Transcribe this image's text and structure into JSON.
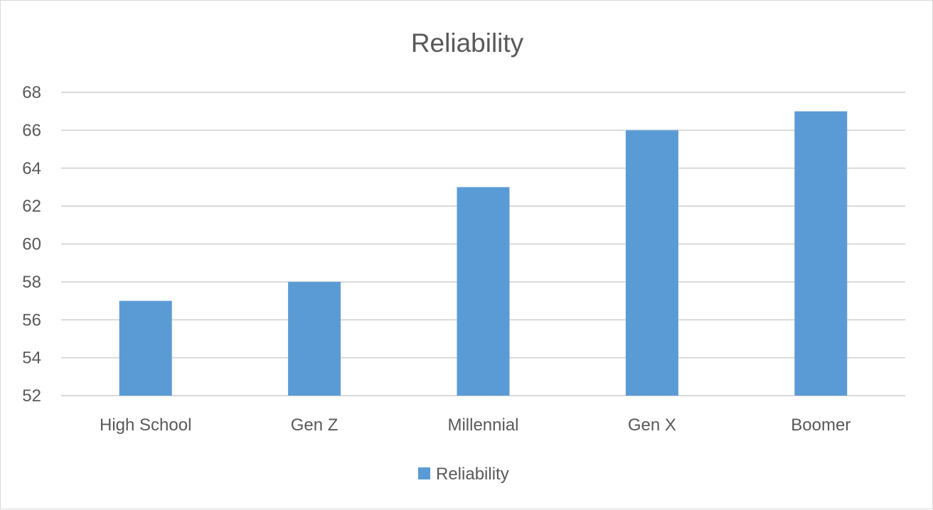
{
  "chart_data": {
    "type": "bar",
    "title": "Reliability",
    "xlabel": "",
    "ylabel": "",
    "categories": [
      "High School",
      "Gen Z",
      "Millennial",
      "Gen X",
      "Boomer"
    ],
    "series": [
      {
        "name": "Reliability",
        "values": [
          57,
          58,
          63,
          66,
          67
        ],
        "color": "#5b9bd5"
      }
    ],
    "ylim": [
      52,
      68
    ],
    "yticks": [
      52,
      54,
      56,
      58,
      60,
      62,
      64,
      66,
      68
    ],
    "grid": true,
    "legend": "bottom",
    "colors": {
      "gridline": "#d9d9d9",
      "text": "#595959"
    }
  }
}
